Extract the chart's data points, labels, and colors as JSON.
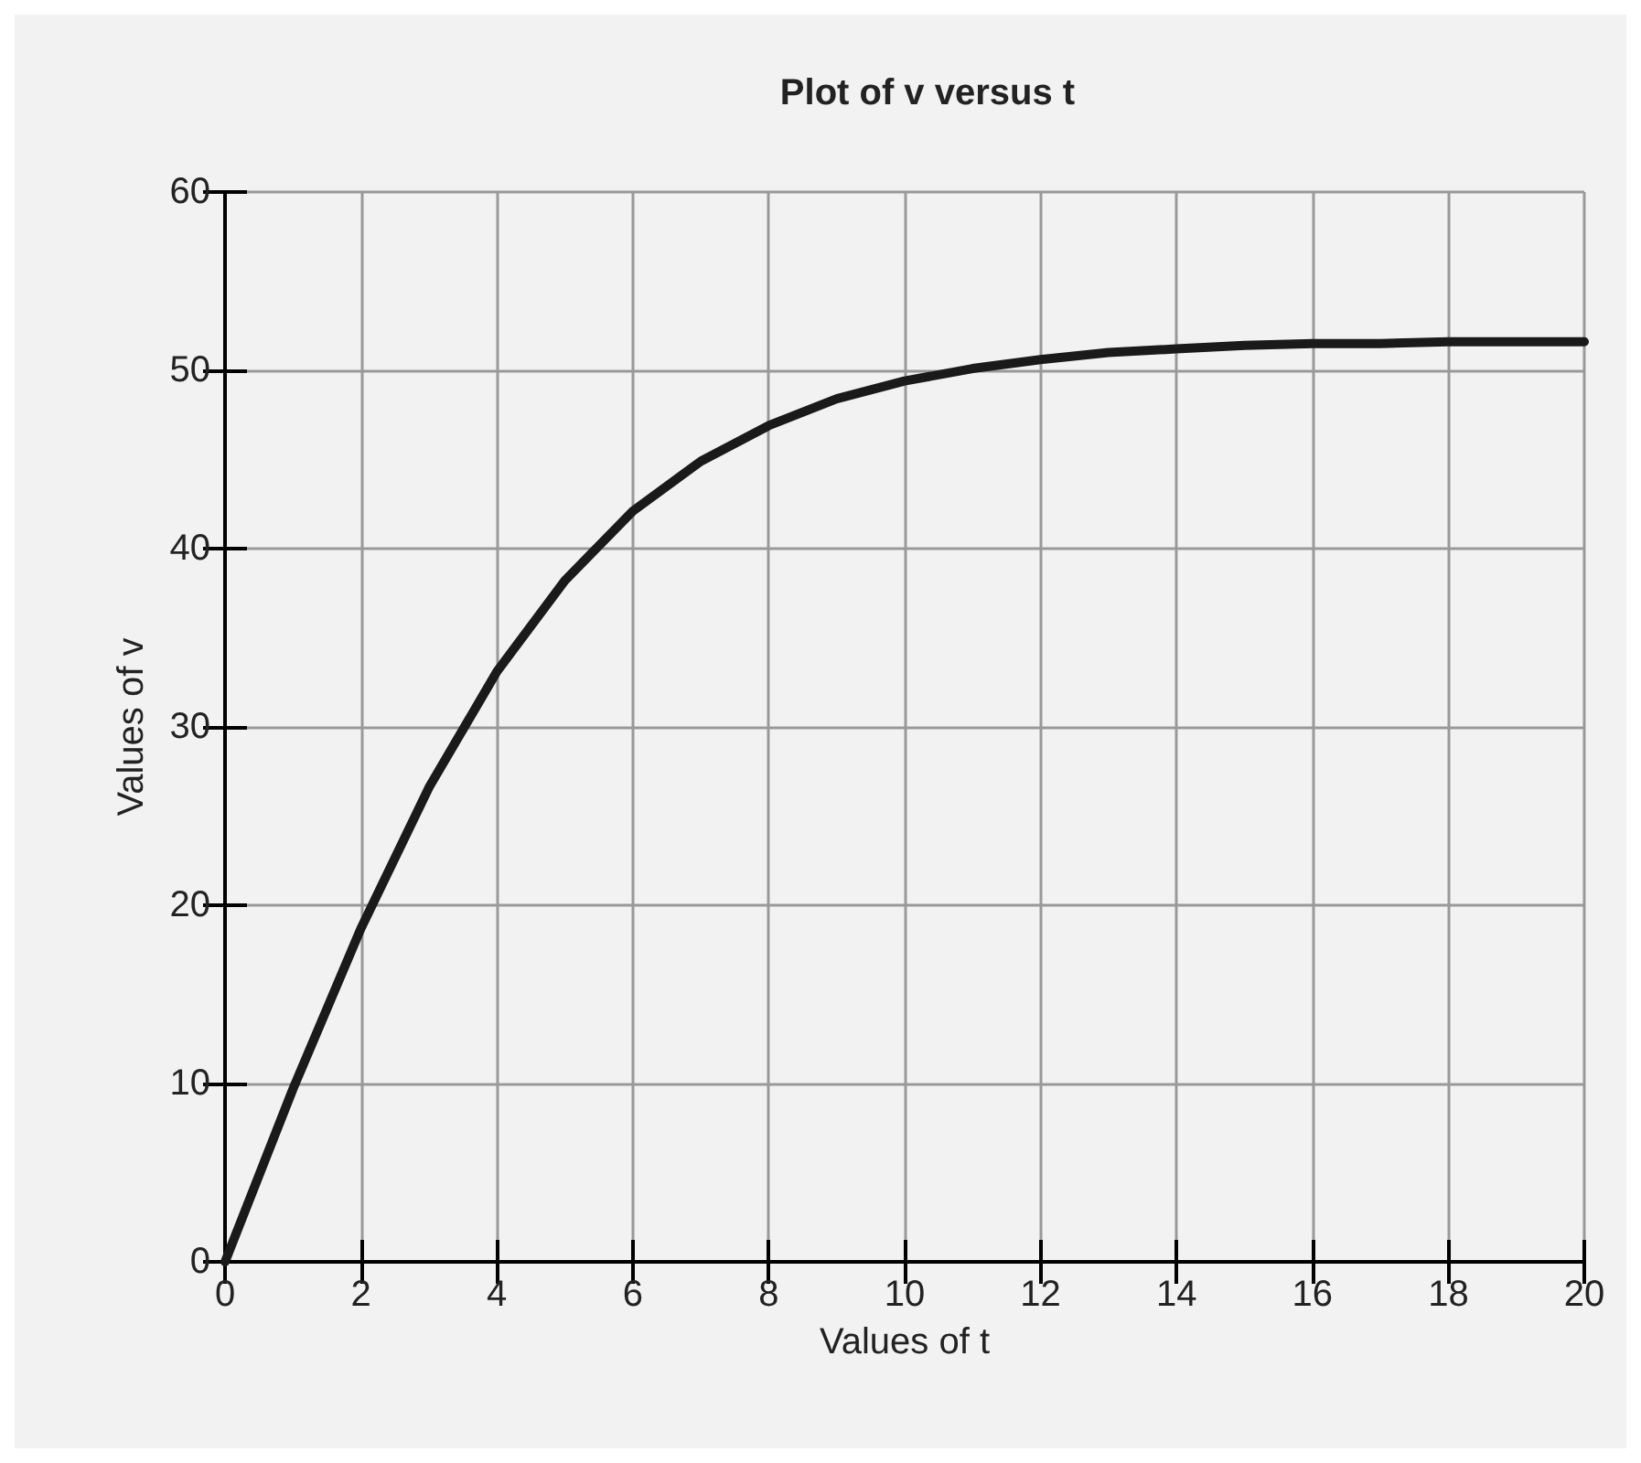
{
  "chart_data": {
    "type": "line",
    "title": "Plot of v versus t",
    "xlabel": "Values of t",
    "ylabel": "Values of v",
    "x": [
      0,
      1,
      2,
      3,
      4,
      5,
      6,
      7,
      8,
      9,
      10,
      11,
      12,
      13,
      14,
      15,
      16,
      17,
      18,
      19,
      20
    ],
    "series": [
      {
        "color": "#1a1a1a",
        "values": [
          0,
          9.7,
          18.7,
          26.6,
          33.1,
          38.2,
          42.1,
          44.9,
          46.9,
          48.4,
          49.4,
          50.1,
          50.6,
          51.0,
          51.2,
          51.4,
          51.5,
          51.5,
          51.6,
          51.6,
          51.6
        ]
      }
    ],
    "xlim": [
      0,
      20
    ],
    "xticks": [
      0,
      2,
      4,
      6,
      8,
      10,
      12,
      14,
      16,
      18,
      20
    ],
    "ylim": [
      0,
      60
    ],
    "yticks": [
      0,
      10,
      20,
      30,
      40,
      50,
      60
    ],
    "grid": true,
    "line_style": "solid",
    "marker": "none"
  }
}
